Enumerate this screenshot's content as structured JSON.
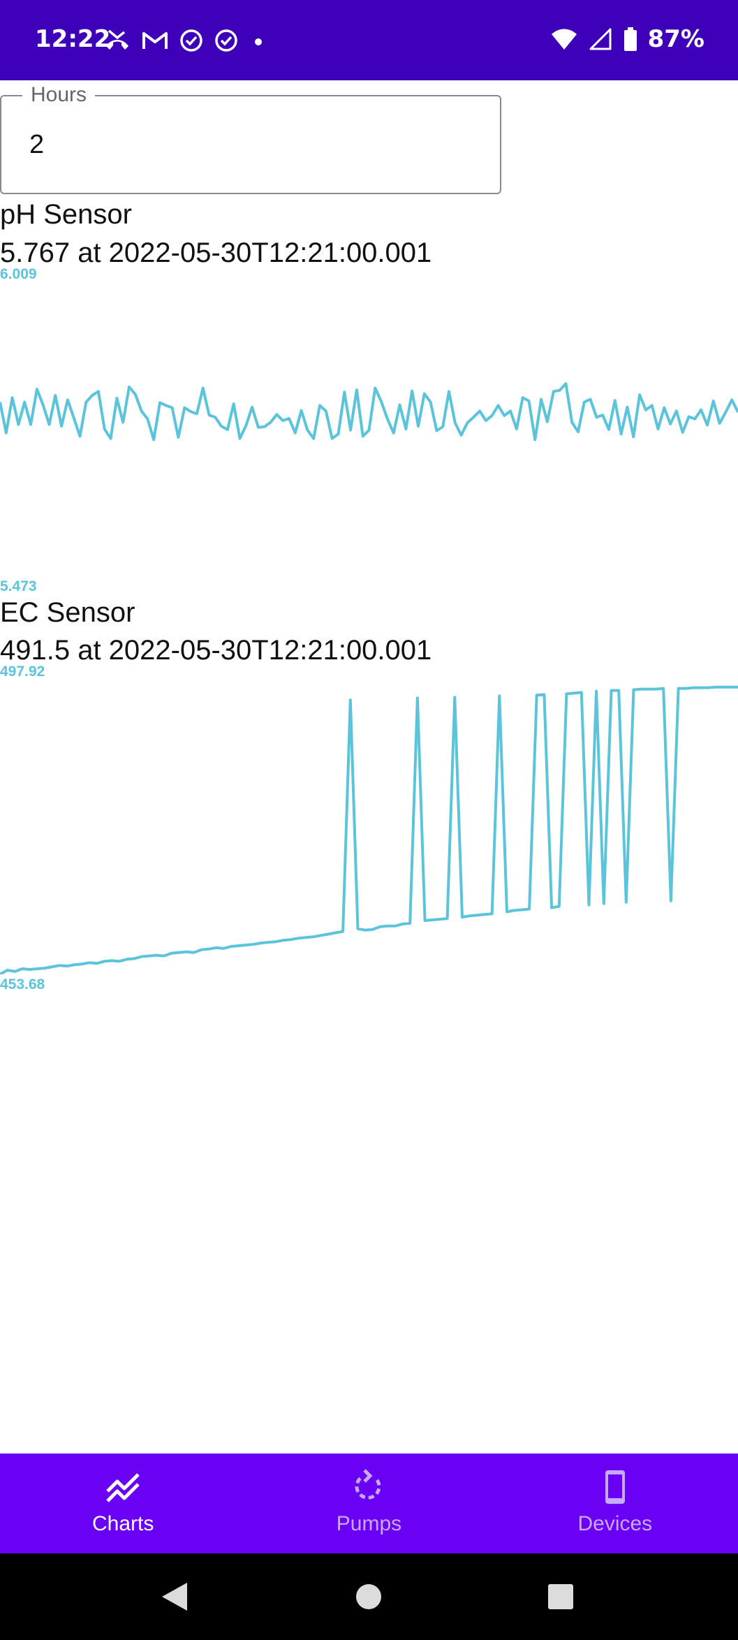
{
  "status_bar": {
    "time": "12:22",
    "battery": "87%",
    "icons_left": [
      "missed-call-icon",
      "gmail-icon",
      "check-circle-icon",
      "check-circle-icon",
      "dot-icon"
    ],
    "icons_right": [
      "wifi-icon",
      "signal-icon",
      "battery-icon"
    ]
  },
  "hours_field": {
    "label": "Hours",
    "value": "2"
  },
  "sensors": [
    {
      "title": "pH Sensor",
      "reading": "5.767 at 2022-05-30T12:21:00.001",
      "max_label": "6.009",
      "min_label": "5.473"
    },
    {
      "title": "EC Sensor",
      "reading": "491.5 at 2022-05-30T12:21:00.001",
      "max_label": "497.92",
      "min_label": "453.68"
    }
  ],
  "chart_data": [
    {
      "type": "line",
      "title": "pH Sensor",
      "ylim": [
        5.473,
        6.009
      ],
      "series": [
        {
          "color": "#5bc4da",
          "values": [
            5.785,
            5.73,
            5.793,
            5.745,
            5.785,
            5.745,
            5.808,
            5.78,
            5.745,
            5.797,
            5.742,
            5.789,
            5.757,
            5.724,
            5.785,
            5.797,
            5.804,
            5.737,
            5.72,
            5.792,
            5.749,
            5.812,
            5.799,
            5.769,
            5.755,
            5.718,
            5.784,
            5.779,
            5.775,
            5.722,
            5.775,
            5.768,
            5.764,
            5.81,
            5.762,
            5.758,
            5.742,
            5.736,
            5.782,
            5.72,
            5.743,
            5.776,
            5.74,
            5.741,
            5.749,
            5.763,
            5.752,
            5.756,
            5.73,
            5.77,
            5.735,
            5.72,
            5.779,
            5.769,
            5.72,
            5.728,
            5.803,
            5.735,
            5.807,
            5.724,
            5.735,
            5.81,
            5.786,
            5.755,
            5.73,
            5.78,
            5.737,
            5.805,
            5.742,
            5.8,
            5.785,
            5.734,
            5.741,
            5.804,
            5.748,
            5.726,
            5.748,
            5.758,
            5.769,
            5.752,
            5.761,
            5.779,
            5.761,
            5.769,
            5.737,
            5.793,
            5.787,
            5.718,
            5.79,
            5.75,
            5.804,
            5.806,
            5.818,
            5.749,
            5.732,
            5.785,
            5.79,
            5.758,
            5.762,
            5.736,
            5.788,
            5.728,
            5.776,
            5.723,
            5.798,
            5.771,
            5.779,
            5.737,
            5.775,
            5.746,
            5.769,
            5.731,
            5.759,
            5.755,
            5.771,
            5.744,
            5.787,
            5.747,
            5.767,
            5.789,
            5.767
          ]
        }
      ]
    },
    {
      "type": "line",
      "title": "EC Sensor",
      "ylim": [
        453.68,
        497.92
      ],
      "series": [
        {
          "color": "#5bc4da",
          "values": [
            453.7,
            454.3,
            454.1,
            454.5,
            454.4,
            454.5,
            454.6,
            454.8,
            455.0,
            454.9,
            455.1,
            455.2,
            455.4,
            455.3,
            455.6,
            455.7,
            455.6,
            455.9,
            456.0,
            456.3,
            456.4,
            456.5,
            456.4,
            456.8,
            456.9,
            457.0,
            456.9,
            457.3,
            457.4,
            457.6,
            457.5,
            457.8,
            457.9,
            458.0,
            458.1,
            458.3,
            458.4,
            458.5,
            458.7,
            458.8,
            459.0,
            459.1,
            459.2,
            459.4,
            459.6,
            459.8,
            460.0,
            494.1,
            460.4,
            460.2,
            460.3,
            460.7,
            460.8,
            460.8,
            461.1,
            461.2,
            494.4,
            461.6,
            461.7,
            461.8,
            461.9,
            494.5,
            462.1,
            462.3,
            462.4,
            462.5,
            462.6,
            494.7,
            462.9,
            463.1,
            463.2,
            463.3,
            494.8,
            494.9,
            463.5,
            463.7,
            495.0,
            495.1,
            495.2,
            463.9,
            495.4,
            464.1,
            495.5,
            495.5,
            464.3,
            495.6,
            495.7,
            495.7,
            495.7,
            495.8,
            464.5,
            495.8,
            495.8,
            495.9,
            495.9,
            495.9,
            496.0,
            496.0,
            496.0,
            496.0
          ]
        }
      ]
    }
  ],
  "bottom_nav": {
    "items": [
      {
        "label": "Charts",
        "icon": "chart-line-icon",
        "active": true
      },
      {
        "label": "Pumps",
        "icon": "refresh-icon",
        "active": false
      },
      {
        "label": "Devices",
        "icon": "device-icon",
        "active": false
      }
    ]
  },
  "colors": {
    "status_bar": "#3f00ba",
    "bottom_nav": "#6a00f4",
    "chart_line": "#5bc4da",
    "nav_inactive": "#c7a9ff"
  }
}
